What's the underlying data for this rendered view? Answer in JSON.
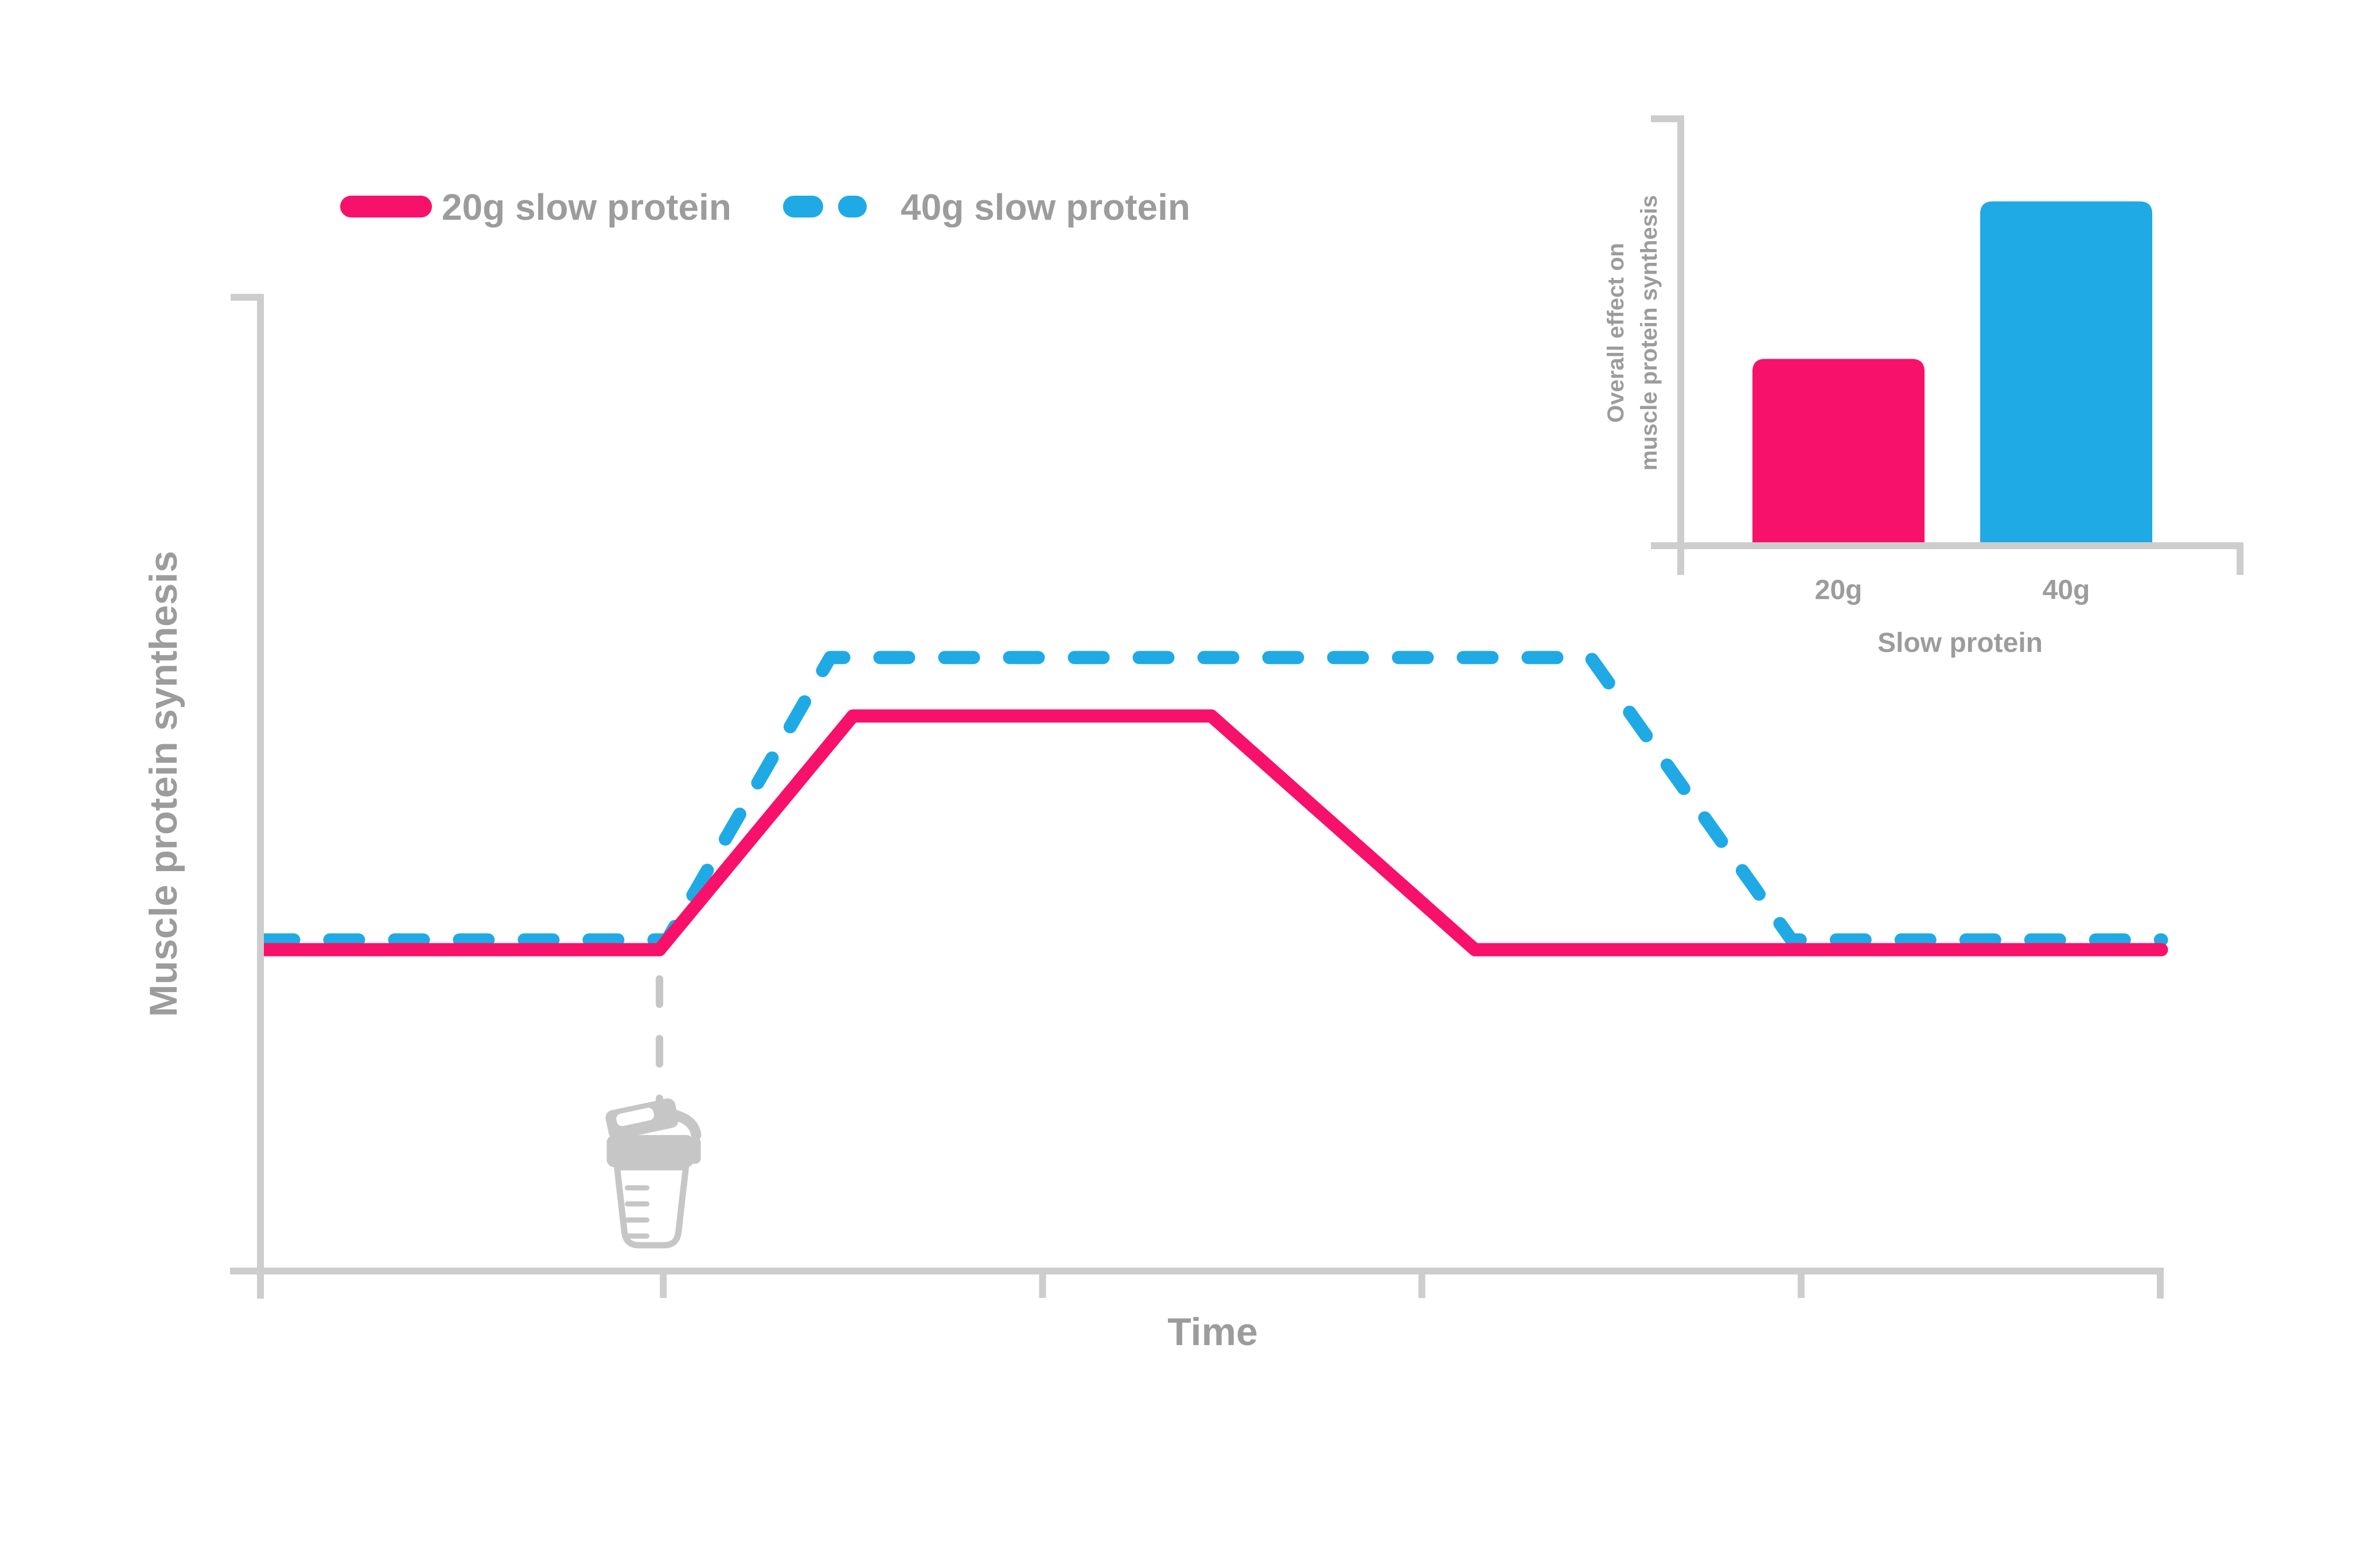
{
  "colors": {
    "pink_20g": "#F7116B",
    "blue_40g": "#1FAAE5",
    "text_gray": "#9C9C9C",
    "axis_gray": "#CDCDCD",
    "icon_gray": "#C6C6C6",
    "background": "#FFFFFF"
  },
  "legend": {
    "items": [
      {
        "label": "20g slow protein",
        "color": "#F7116B",
        "style": "solid"
      },
      {
        "label": "40g slow protein",
        "color": "#1FAAE5",
        "style": "dashed"
      }
    ]
  },
  "chart_data": [
    {
      "id": "main-line-chart",
      "type": "line",
      "title": "",
      "xlabel": "Time",
      "ylabel": "Muscle protein synthesis",
      "x_range": [
        0,
        100
      ],
      "y_range": [
        0,
        100
      ],
      "x_ticks": [
        21,
        41,
        61,
        81
      ],
      "y_ticks": [],
      "grid": false,
      "legend_position": "top-left",
      "series": [
        {
          "name": "20g slow protein",
          "color": "#F7116B",
          "style": "solid",
          "points": [
            [
              0,
              33
            ],
            [
              20.8,
              33
            ],
            [
              31,
              57
            ],
            [
              49.9,
              57
            ],
            [
              63.8,
              33
            ],
            [
              100,
              33
            ]
          ]
        },
        {
          "name": "40g slow protein",
          "color": "#1FAAE5",
          "style": "dashed",
          "points": [
            [
              0,
              34
            ],
            [
              21.2,
              34
            ],
            [
              29.8,
              63
            ],
            [
              69.9,
              63
            ],
            [
              80.5,
              34
            ],
            [
              100,
              34
            ]
          ]
        }
      ],
      "annotations": [
        {
          "type": "event-marker",
          "x": 20.8,
          "icon": "protein-shaker-icon"
        }
      ]
    },
    {
      "id": "inset-bar-chart",
      "type": "bar",
      "categories": [
        "20g",
        "40g"
      ],
      "values": [
        44,
        81
      ],
      "colors": [
        "#F7116B",
        "#1FAAE5"
      ],
      "xlabel": "Slow protein",
      "ylabel_lines": [
        "Overall effect on",
        "muscle protein synthesis"
      ],
      "y_range": [
        0,
        100
      ],
      "grid": false
    }
  ]
}
